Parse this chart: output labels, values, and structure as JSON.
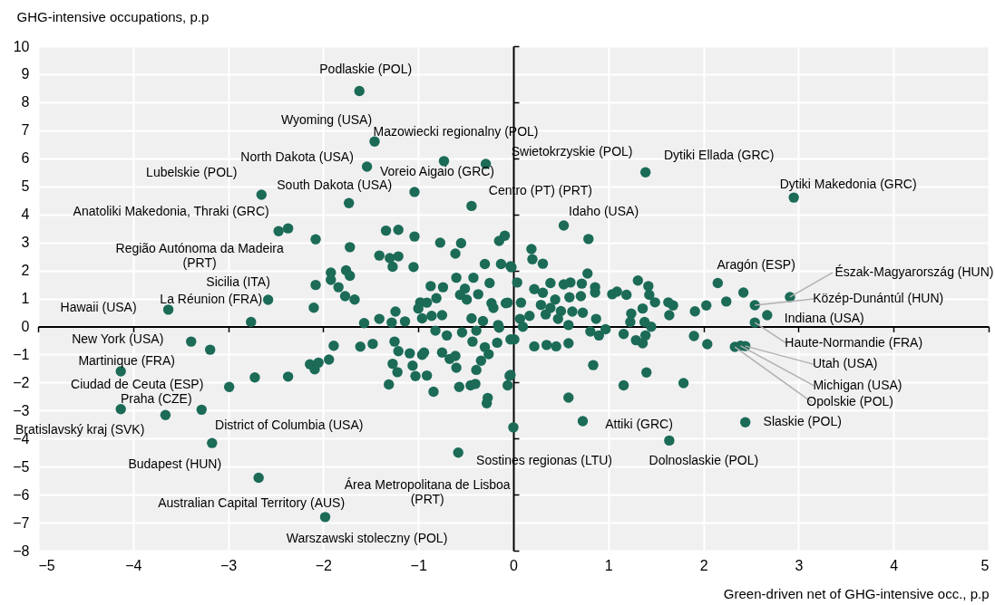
{
  "chart_data": {
    "type": "scatter",
    "xlabel": "Green-driven net of GHG-intensive occ., p.p",
    "ylabel": "GHG-intensive occupations, p.p",
    "xlim": [
      -5,
      5
    ],
    "xticks": [
      -5,
      -4,
      -3,
      -2,
      -1,
      0,
      1,
      2,
      3,
      4,
      5
    ],
    "ylim": [
      -8,
      10
    ],
    "yticks": [
      -8,
      -7,
      -6,
      -5,
      -4,
      -3,
      -2,
      -1,
      0,
      1,
      2,
      3,
      4,
      5,
      6,
      7,
      8,
      9,
      10
    ],
    "grid": true,
    "marker": "circle",
    "series": [
      {
        "color": "#1b6b57",
        "x": [
          -1.62,
          -1.46,
          -1.54,
          -0.73,
          -0.29,
          -2.65,
          -1.73,
          -1.04,
          -0.44,
          1.39,
          2.95,
          0.53,
          -2.37,
          -2.47,
          -2.58,
          -2.76,
          -3.63,
          -3.39,
          -3.19,
          -4.13,
          -3.28,
          -3.66,
          -4.13,
          -3.17,
          -2.68,
          -1.98,
          -0.58,
          0,
          0.73,
          1.64,
          2.44,
          2.33,
          2.39,
          2.44,
          2.54,
          2.67,
          2.54,
          2.91,
          2.42,
          -2.08,
          -1.72,
          -1.34,
          -1.21,
          -1.04,
          -0.77,
          -0.55,
          -0.61,
          -1.41,
          -1.3,
          -1.21,
          -1.27,
          -1.05,
          -0.3,
          -0.13,
          -0.03,
          -0.15,
          -0.09,
          -1.92,
          -1.92,
          -1.76,
          -1.72,
          -2.08,
          -1.84,
          -1.77,
          -1.67,
          -2.1,
          -0.6,
          -0.42,
          -0.25,
          -0.87,
          -0.74,
          -0.51,
          -0.56,
          -0.37,
          -0.81,
          -0.49,
          -0.98,
          -0.91,
          -0.23,
          -0.08,
          -1.0,
          -0.21,
          -1.24,
          -1.57,
          -1.41,
          -1.28,
          -1.14,
          -0.96,
          -0.86,
          -0.75,
          -0.44,
          -0.32,
          -0.16,
          0.79,
          0.19,
          0.2,
          0.31,
          -0.02,
          0.78,
          0.04,
          0.22,
          0.31,
          0.39,
          0.53,
          0.6,
          0.72,
          0.86,
          0.86,
          0.44,
          0.59,
          0.71,
          1.04,
          1.09,
          1.19,
          1.31,
          1.42,
          1.43,
          1.49,
          1.63,
          1.68,
          1.64,
          1.91,
          2.03,
          2.24,
          2.15,
          -0.06,
          0.08,
          0.29,
          0.39,
          0.5,
          0.62,
          0.73,
          0.87,
          0.07,
          0.17,
          0.34,
          0.47,
          1.24,
          1.36,
          1.38,
          1.45,
          1.23,
          0.1,
          0.58,
          0.81,
          0.97,
          1.9,
          2.04,
          0.84,
          1.4,
          1.16,
          1.79,
          0.58,
          -0.04,
          -0.06,
          0.01,
          0.22,
          0.35,
          0.45,
          0.58,
          0.9,
          1.16,
          1.29,
          1.36,
          1.39,
          -1.89,
          -1.61,
          -1.48,
          -1.94,
          -2.14,
          -2.05,
          -2.09,
          -2.37,
          -2.72,
          -2.99,
          -1.25,
          -1.21,
          -1.09,
          -0.96,
          -0.94,
          -0.75,
          -0.67,
          -0.61,
          -1.27,
          -1.22,
          -1.06,
          -1.03,
          -0.91,
          -1.31,
          -0.84,
          -0.6,
          -0.57,
          -0.45,
          -0.4,
          -0.39,
          -0.34,
          -0.3,
          -0.26,
          -0.43,
          -0.17,
          -0.03,
          -0.27,
          -0.28,
          -0.03,
          -0.7,
          -0.54,
          -0.39,
          -0.82,
          -0.15
        ],
        "values": [
          8.4,
          6.6,
          5.7,
          5.9,
          5.8,
          4.7,
          4.4,
          4.8,
          4.3,
          5.5,
          4.6,
          3.6,
          3.5,
          3.4,
          0.95,
          0.16,
          0.6,
          -0.54,
          -0.83,
          -1.6,
          -2.97,
          -3.16,
          -2.95,
          -4.16,
          -5.4,
          -6.8,
          -4.5,
          -3.6,
          -3.38,
          -4.07,
          -3.42,
          -0.73,
          -0.69,
          -0.7,
          0.14,
          0.4,
          0.76,
          1.05,
          1.21,
          3.11,
          2.83,
          3.42,
          3.45,
          3.21,
          2.99,
          2.97,
          2.6,
          2.53,
          2.44,
          2.5,
          2.13,
          2.12,
          2.23,
          2.23,
          2.15,
          3.05,
          3.24,
          1.92,
          1.66,
          2.0,
          1.81,
          1.48,
          1.4,
          1.08,
          0.96,
          0.67,
          1.74,
          1.74,
          1.55,
          1.44,
          1.4,
          1.35,
          1.13,
          1.15,
          1.01,
          0.96,
          0.86,
          0.85,
          0.83,
          0.83,
          0.64,
          0.66,
          0.53,
          0.12,
          0.27,
          0.14,
          0.18,
          0.29,
          0.38,
          0.4,
          0.29,
          0.19,
          0.05,
          3.12,
          2.76,
          2.4,
          2.24,
          2.11,
          1.89,
          1.57,
          1.33,
          1.2,
          1.55,
          1.5,
          1.57,
          1.53,
          1.4,
          1.21,
          0.96,
          1.04,
          1.08,
          1.15,
          1.24,
          1.13,
          1.64,
          1.44,
          1.13,
          0.86,
          0.86,
          0.75,
          0.4,
          0.54,
          0.75,
          0.89,
          1.55,
          0.85,
          0.85,
          0.77,
          0.66,
          0.55,
          0.53,
          0.49,
          0.27,
          0.27,
          0.38,
          0.43,
          0.27,
          0.46,
          0.64,
          0.16,
          -0.01,
          0.16,
          -0.01,
          0.05,
          -0.18,
          -0.1,
          -0.34,
          -0.63,
          -1.38,
          -1.64,
          -2.1,
          -2.02,
          -2.54,
          -1.76,
          -2.1,
          -0.46,
          -0.71,
          -0.66,
          -0.71,
          -0.6,
          -0.32,
          -0.27,
          -0.49,
          -0.6,
          -0.32,
          -0.69,
          -0.72,
          -0.62,
          -1.18,
          -1.35,
          -1.29,
          -1.53,
          -1.79,
          -1.82,
          -2.16,
          -0.54,
          -0.88,
          -0.96,
          -1.01,
          -0.93,
          -0.93,
          -1.16,
          -1.05,
          -1.33,
          -1.63,
          -1.4,
          -1.77,
          -1.75,
          -2.07,
          -2.33,
          -1.47,
          -2.16,
          -2.1,
          -2.05,
          -1.55,
          -1.22,
          -0.74,
          -0.99,
          -0.54,
          -0.58,
          -0.46,
          -2.55,
          -2.74,
          -1.73,
          -0.32,
          -0.21,
          -0.15,
          -0.15,
          -0.04
        ]
      }
    ],
    "annotations": [
      {
        "text": "Podlaskie (POL)",
        "x": -1.62,
        "y": 8.4
      },
      {
        "text": "Wyoming (USA)",
        "x": -1.46,
        "y": 6.6
      },
      {
        "text": "Mazowiecki regionalny (POL)",
        "x": -0.73,
        "y": 5.9
      },
      {
        "text": "Swietokrzyskie (POL)",
        "x": -0.29,
        "y": 5.8
      },
      {
        "text": "Dytiki Ellada (GRC)",
        "x": 1.39,
        "y": 5.5
      },
      {
        "text": "North Dakota (USA)",
        "x": -1.54,
        "y": 5.7
      },
      {
        "text": "Lubelskie (POL)",
        "x": -2.65,
        "y": 4.7
      },
      {
        "text": "Voreio Aigaio (GRC)",
        "x": -1.04,
        "y": 4.8
      },
      {
        "text": "South Dakota (USA)",
        "x": -1.73,
        "y": 4.4
      },
      {
        "text": "Centro (PT) (PRT)",
        "x": -0.44,
        "y": 4.3
      },
      {
        "text": "Dytiki Makedonia (GRC)",
        "x": 2.95,
        "y": 4.6
      },
      {
        "text": "Anatoliki Makedonia, Thraki (GRC)",
        "x": -2.37,
        "y": 3.5
      },
      {
        "text": "Idaho (USA)",
        "x": 0.53,
        "y": 3.6
      },
      {
        "text": "Região Autónoma da Madeira\n(PRT)",
        "x": -2.47,
        "y": 3.4
      },
      {
        "text": "Sicilia (ITA)",
        "x": -2.58,
        "y": 0.95
      },
      {
        "text": "La Réunion (FRA)",
        "x": -2.76,
        "y": 0.16
      },
      {
        "text": "Hawaii (USA)",
        "x": -3.63,
        "y": 0.6
      },
      {
        "text": "Aragón (ESP)",
        "x": 2.42,
        "y": 1.21
      },
      {
        "text": "Észak-Magyarország (HUN)",
        "x": 2.91,
        "y": 1.05
      },
      {
        "text": "Közép-Dunántúl (HUN)",
        "x": 2.54,
        "y": 0.76
      },
      {
        "text": "Indiana (USA)",
        "x": 2.67,
        "y": 0.4
      },
      {
        "text": "Haute-Normandie (FRA)",
        "x": 2.54,
        "y": 0.14
      },
      {
        "text": "New York (USA)",
        "x": -3.39,
        "y": -0.54
      },
      {
        "text": "Martinique (FRA)",
        "x": -3.19,
        "y": -0.83
      },
      {
        "text": "Ciudad de Ceuta (ESP)",
        "x": -4.13,
        "y": -1.6
      },
      {
        "text": "Praha (CZE)",
        "x": -3.28,
        "y": -2.97
      },
      {
        "text": "Bratislavský kraj (SVK)",
        "x": -4.13,
        "y": -2.95
      },
      {
        "text": "Utah (USA)",
        "x": 2.44,
        "y": -0.7
      },
      {
        "text": "Michigan (USA)",
        "x": 2.39,
        "y": -0.69
      },
      {
        "text": "Opolskie (POL)",
        "x": 2.33,
        "y": -0.73
      },
      {
        "text": "Slaskie (POL)",
        "x": 2.44,
        "y": -3.42
      },
      {
        "text": "Attiki (GRC)",
        "x": 0.73,
        "y": -3.38
      },
      {
        "text": "District of Columbia (USA)",
        "x": -3.17,
        "y": -4.16
      },
      {
        "text": "Sostines regionas (LTU)",
        "x": 0,
        "y": -3.6
      },
      {
        "text": "Dolnoslaskie (POL)",
        "x": 1.64,
        "y": -4.07
      },
      {
        "text": "Budapest (HUN)",
        "x": -3.17,
        "y": -4.16
      },
      {
        "text": "Área Metropolitana de Lisboa\n(PRT)",
        "x": -0.58,
        "y": -4.5
      },
      {
        "text": "Australian Capital Territory (AUS)",
        "x": -2.68,
        "y": -5.4
      },
      {
        "text": "Warszawski stoleczny (POL)",
        "x": -1.98,
        "y": -6.8
      }
    ]
  }
}
